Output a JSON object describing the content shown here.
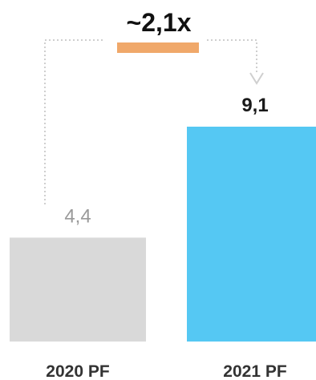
{
  "chart_data": {
    "type": "bar",
    "categories": [
      "2020 PF",
      "2021 PF"
    ],
    "values": [
      4.4,
      9.1
    ],
    "value_labels": [
      "4,4",
      "9,1"
    ],
    "bar_colors": [
      "#d9d9d9",
      "#55c8f3"
    ],
    "growth_label": "~2,1x",
    "growth_color": "#f0a86a",
    "ylim": [
      0,
      9.1
    ],
    "title": "",
    "xlabel": "",
    "ylabel": ""
  }
}
